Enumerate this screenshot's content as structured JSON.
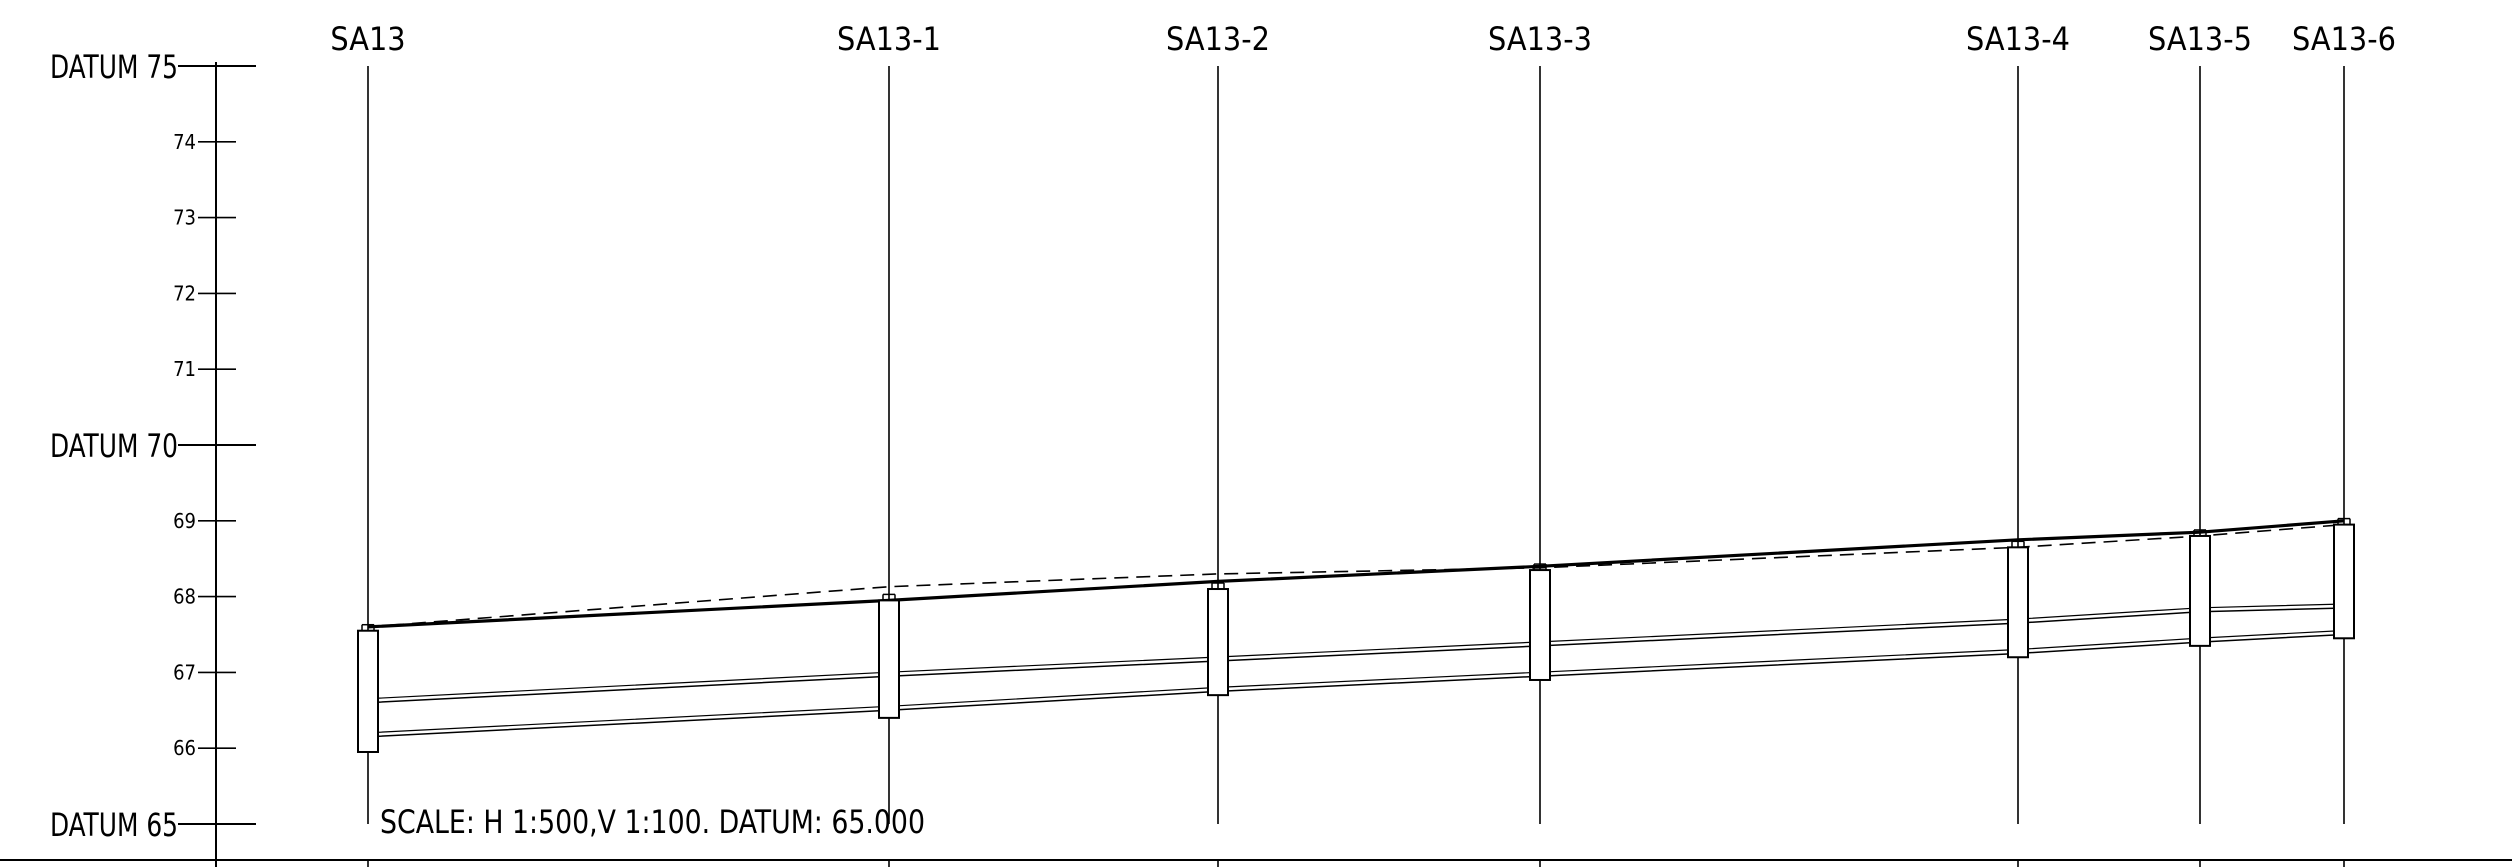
{
  "datum_labels": [
    {
      "text": "DATUM 75",
      "value": 75
    },
    {
      "text": "DATUM 70",
      "value": 70
    },
    {
      "text": "DATUM 65",
      "value": 65
    }
  ],
  "minor_ticks": [
    {
      "text": "74",
      "value": 74
    },
    {
      "text": "73",
      "value": 73
    },
    {
      "text": "72",
      "value": 72
    },
    {
      "text": "71",
      "value": 71
    },
    {
      "text": "69",
      "value": 69
    },
    {
      "text": "68",
      "value": 68
    },
    {
      "text": "67",
      "value": 67
    },
    {
      "text": "66",
      "value": 66
    }
  ],
  "stations": [
    {
      "name": "SA13",
      "ground": 67.6,
      "dashed": 67.6,
      "pipe_top": 66.6,
      "pipe_bottom": 66.15,
      "post_top": 67.55,
      "post_bottom": 65.95
    },
    {
      "name": "SA13-1",
      "ground": 67.95,
      "dashed": 68.13,
      "pipe_top": 66.95,
      "pipe_bottom": 66.5,
      "post_top": 67.95,
      "post_bottom": 66.4
    },
    {
      "name": "SA13-2",
      "ground": 68.2,
      "dashed": 68.3,
      "pipe_top": 67.15,
      "pipe_bottom": 66.75,
      "post_top": 68.1,
      "post_bottom": 66.7
    },
    {
      "name": "SA13-3",
      "ground": 68.4,
      "dashed": 68.38,
      "pipe_top": 67.35,
      "pipe_bottom": 66.95,
      "post_top": 68.35,
      "post_bottom": 66.9
    },
    {
      "name": "SA13-4",
      "ground": 68.75,
      "dashed": 68.65,
      "pipe_top": 67.65,
      "pipe_bottom": 67.25,
      "post_top": 68.65,
      "post_bottom": 67.2
    },
    {
      "name": "SA13-5",
      "ground": 68.85,
      "dashed": 68.8,
      "pipe_top": 67.8,
      "pipe_bottom": 67.4,
      "post_top": 68.8,
      "post_bottom": 67.35
    },
    {
      "name": "SA13-6",
      "ground": 69.0,
      "dashed": 68.95,
      "pipe_top": 67.85,
      "pipe_bottom": 67.5,
      "post_top": 68.95,
      "post_bottom": 67.45
    }
  ],
  "scale_note": "SCALE: H 1:500,V 1:100. DATUM: 65.000",
  "colors": {
    "line": "#000000",
    "background": "#ffffff"
  }
}
